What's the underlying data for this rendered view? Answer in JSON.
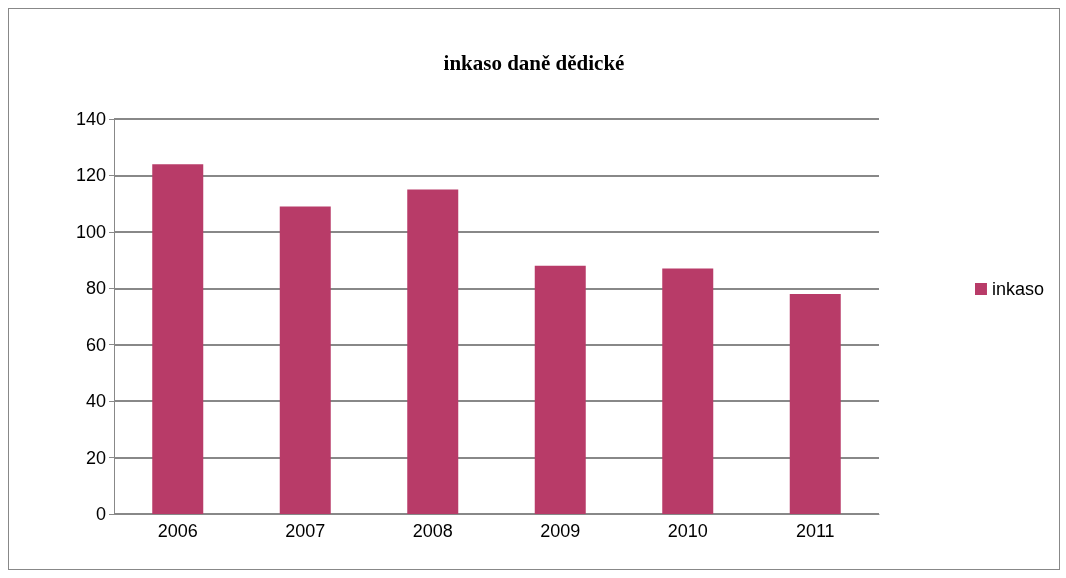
{
  "chart_data": {
    "type": "bar",
    "title": "inkaso daně dědické",
    "categories": [
      "2006",
      "2007",
      "2008",
      "2009",
      "2010",
      "2011"
    ],
    "series": [
      {
        "name": "inkaso",
        "color": "#b83b68",
        "values": [
          124,
          109,
          115,
          88,
          87,
          78
        ]
      }
    ],
    "ylim": [
      0,
      140
    ],
    "yticks": [
      0,
      20,
      40,
      60,
      80,
      100,
      120,
      140
    ],
    "grid": "y",
    "legend": "right"
  }
}
